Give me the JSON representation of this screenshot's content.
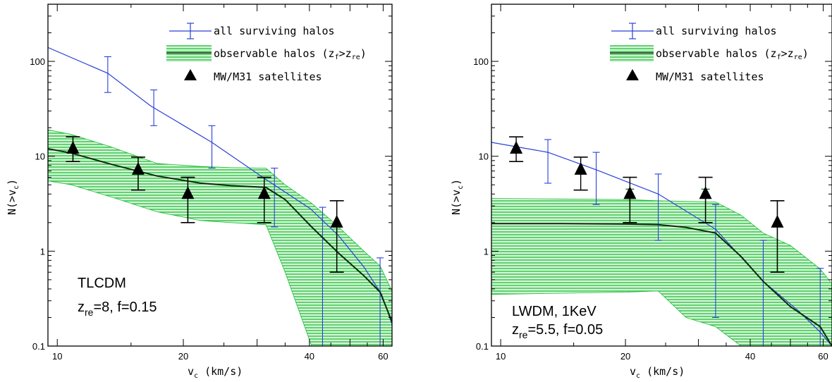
{
  "colors": {
    "all": "#2a3fd8",
    "band": "#1fbf3a",
    "bandFill": "#c8f0c8",
    "obs": "#0c2a0c",
    "sat": "#000000"
  },
  "chart_data": [
    {
      "type": "line",
      "xlabel_main": "v",
      "xlabel_sub": "c",
      "xlabel_tail": " (km/s)",
      "ylabel_main": "N(>v",
      "ylabel_sub": "c",
      "ylabel_tail": ")",
      "xscale": "log",
      "yscale": "log",
      "xlim": [
        9.5,
        63
      ],
      "ylim": [
        0.1,
        400
      ],
      "xticks": [
        10,
        20,
        40,
        60
      ],
      "yticks": [
        0.1,
        1,
        10,
        100
      ],
      "legend": {
        "placement": "top-right",
        "all": "all surviving halos",
        "obs_pre": "observable halos (z",
        "obs_sub1": "f",
        "obs_mid": ">z",
        "obs_sub2": "re",
        "obs_post": ")",
        "sat": "MW/M31 satellites"
      },
      "annot_model": "TLCDM",
      "annot_z_main": "z",
      "annot_z_sub": "re",
      "annot_z_tail": "=8,  f=0.15",
      "series": [
        {
          "name": "all surviving halos",
          "x": [
            9.5,
            13.2,
            16.7,
            23.4,
            31.5,
            40.2,
            47,
            54,
            59.5,
            63
          ],
          "y": [
            140,
            75,
            34,
            14,
            5.7,
            2.8,
            1.45,
            0.68,
            0.35,
            0.17
          ],
          "err_x": [
            13.2,
            17.0,
            23.4,
            33.0,
            43.0,
            59.0
          ],
          "err_lo": [
            47,
            21,
            7.5,
            1.8,
            0.1,
            0.1
          ],
          "err_hi": [
            112,
            50,
            21,
            7.5,
            2.9,
            0.85
          ]
        },
        {
          "name": "observable halos",
          "x": [
            9.5,
            10.8,
            13.5,
            17.3,
            22.0,
            26.0,
            31.5,
            35.0,
            40.5,
            47,
            54,
            59,
            63
          ],
          "y": [
            12.0,
            10.8,
            8.2,
            6.2,
            5.2,
            4.9,
            4.7,
            3.5,
            1.8,
            0.95,
            0.55,
            0.37,
            0.18
          ],
          "band_lo": [
            5.5,
            5.0,
            3.7,
            2.6,
            2.1,
            2.0,
            1.9,
            0.6,
            0.1,
            0.1,
            0.1,
            0.1,
            0.1
          ],
          "band_hi": [
            19,
            17,
            12.5,
            8.4,
            7.8,
            7.6,
            7.5,
            5.0,
            3.2,
            1.8,
            1.0,
            0.7,
            0.38
          ],
          "err_x": [
            10.9,
            15.6,
            20.5,
            31.2,
            46.5
          ],
          "err_lo": [
            8.8,
            4.4,
            2.0,
            2.0,
            0.6
          ],
          "err_hi": [
            16.0,
            9.8,
            6.0,
            6.0,
            3.4
          ]
        },
        {
          "name": "MW/M31 satellites",
          "x": [
            10.9,
            15.6,
            20.5,
            31.2,
            46.5
          ],
          "y": [
            12.0,
            7.2,
            4.0,
            4.0,
            2.0
          ],
          "err_lo": [
            8.8,
            4.4,
            2.0,
            2.0,
            0.6
          ],
          "err_hi": [
            16.0,
            9.8,
            6.0,
            6.0,
            3.4
          ]
        }
      ]
    },
    {
      "type": "line",
      "xlabel_main": "v",
      "xlabel_sub": "c",
      "xlabel_tail": " (km/s)",
      "ylabel_main": "N(>v",
      "ylabel_sub": "c",
      "ylabel_tail": ")",
      "xscale": "log",
      "yscale": "log",
      "xlim": [
        9.5,
        63
      ],
      "ylim": [
        0.1,
        400
      ],
      "xticks": [
        10,
        20,
        40,
        60
      ],
      "yticks": [
        0.1,
        1,
        10,
        100
      ],
      "legend": {
        "placement": "top-right",
        "all": "all surviving halos",
        "obs_pre": "observable halos (z",
        "obs_sub1": "f",
        "obs_mid": ">z",
        "obs_sub2": "re",
        "obs_post": ")",
        "sat": "MW/M31 satellites"
      },
      "annot_model": "LWDM,  1KeV",
      "annot_z_main": "z",
      "annot_z_sub": "re",
      "annot_z_tail": "=5.5,  f=0.05",
      "series": [
        {
          "name": "all surviving halos",
          "x": [
            9.5,
            13.0,
            17.0,
            24.0,
            33.0,
            43.0,
            52,
            59,
            63
          ],
          "y": [
            14.0,
            11.0,
            7.2,
            4.0,
            1.7,
            0.48,
            0.24,
            0.14,
            0.1
          ],
          "err_x": [
            13.0,
            17.0,
            24.0,
            33.0,
            43.0,
            59.0
          ],
          "err_lo": [
            5.2,
            3.1,
            1.3,
            0.2,
            0.1,
            0.1
          ],
          "err_hi": [
            15.0,
            11.0,
            6.5,
            3.1,
            1.3,
            0.66
          ]
        },
        {
          "name": "observable halos",
          "x": [
            9.5,
            14.0,
            20.0,
            24.0,
            28.0,
            33.0,
            38.0,
            43.0,
            50.0,
            59.0,
            63.0
          ],
          "y": [
            1.95,
            1.95,
            1.93,
            1.9,
            1.78,
            1.55,
            0.88,
            0.48,
            0.26,
            0.16,
            0.1
          ],
          "band_lo": [
            0.35,
            0.36,
            0.37,
            0.38,
            0.2,
            0.16,
            0.1,
            0.1,
            0.1,
            0.1,
            0.1
          ],
          "band_hi": [
            3.6,
            3.55,
            3.5,
            3.4,
            3.35,
            3.3,
            2.4,
            1.55,
            1.15,
            0.65,
            0.45
          ],
          "err_x": [
            20.5,
            31.2,
            46.5
          ],
          "err_lo": [
            2.0,
            2.0,
            0.6
          ],
          "err_hi": [
            4.5,
            4.5,
            3.4
          ]
        },
        {
          "name": "MW/M31 satellites",
          "x": [
            10.9,
            15.6,
            20.5,
            31.2,
            46.5
          ],
          "y": [
            12.0,
            7.2,
            4.0,
            4.0,
            2.0
          ],
          "err_lo": [
            8.8,
            4.4,
            2.0,
            2.0,
            0.6
          ],
          "err_hi": [
            16.0,
            9.8,
            6.0,
            6.0,
            3.4
          ]
        }
      ]
    }
  ]
}
